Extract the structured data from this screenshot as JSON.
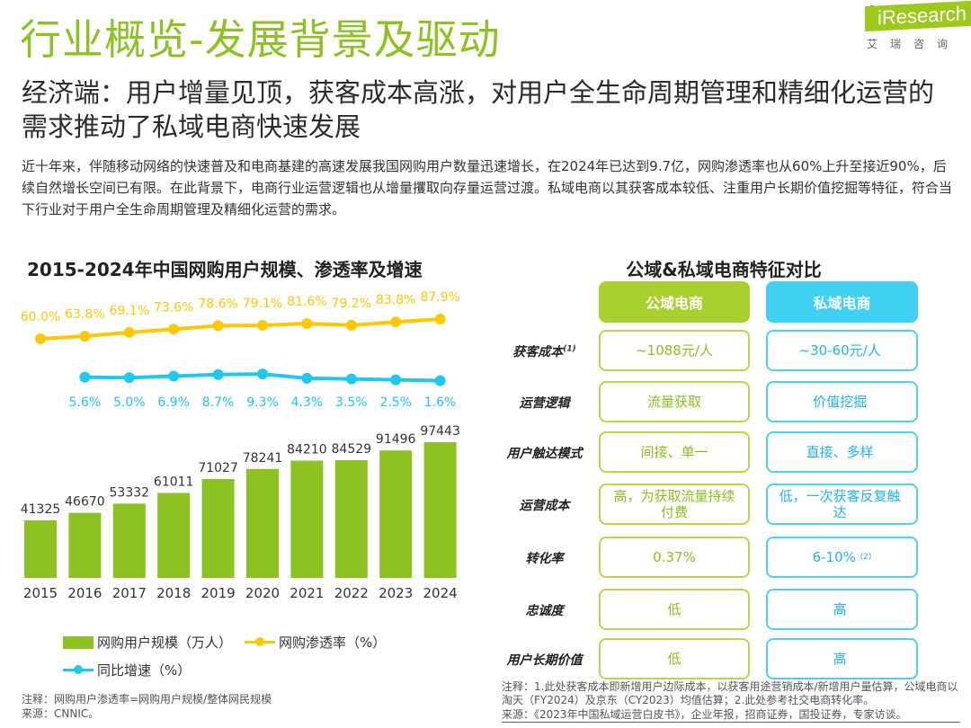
{
  "header": {
    "title": "行业概览-发展背景及驱动",
    "logo_text": "iResearch",
    "logo_cn": "艾瑞咨询"
  },
  "subtitle": "经济端：用户增量见顶，获客成本高涨，对用户全生命周期管理和精细化运营的需求推动了私域电商快速发展",
  "intro": "近十年来，伴随移动网络的快速普及和电商基建的高速发展我国网购用户数量迅速增长，在2024年已达到9.7亿，网购渗透率也从60%上升至接近90%，后续自然增长空间已有限。在此背景下，电商行业运营逻辑也从增量攫取向存量运营过渡。私域电商以其获客成本较低、注重用户长期价值挖掘等特征，符合当下行业对于用户全生命周期管理及精细化运营的需求。",
  "chart_data": {
    "type": "bar",
    "title": "2015-2024年中国网购用户规模、渗透率及增速",
    "categories": [
      "2015",
      "2016",
      "2017",
      "2018",
      "2019",
      "2020",
      "2021",
      "2022",
      "2023",
      "2024"
    ],
    "series": [
      {
        "name": "网购用户规模（万人）",
        "type": "bar",
        "color": "#8cc221",
        "values": [
          41325,
          46670,
          53332,
          61011,
          71027,
          78241,
          84210,
          84529,
          91496,
          97443
        ]
      },
      {
        "name": "网购渗透率（%）",
        "type": "line",
        "color": "#ffc800",
        "values": [
          60.0,
          63.8,
          69.1,
          73.6,
          78.6,
          79.1,
          81.6,
          79.2,
          83.8,
          87.9
        ]
      },
      {
        "name": "同比增速（%）",
        "type": "line",
        "color": "#1ec8f0",
        "values": [
          null,
          5.6,
          5.0,
          6.9,
          8.7,
          9.3,
          4.3,
          3.5,
          2.5,
          1.6
        ]
      }
    ],
    "legend": "bottom"
  },
  "chart_notes": {
    "note": "注释：网购用户渗透率=网购用户规模/整体网民规模",
    "source": "来源：CNNIC。"
  },
  "comparison": {
    "title": "公域&私域电商特征对比",
    "headers": [
      "公域电商",
      "私域电商"
    ],
    "colors": {
      "public": "#a8d12f",
      "private": "#3fd0f2"
    },
    "rows": [
      {
        "label": "获客成本",
        "sup": "(1)",
        "public": "~1088元/人",
        "private": "~30-60元/人",
        "private_sup": ""
      },
      {
        "label": "运营逻辑",
        "sup": "",
        "public": "流量获取",
        "private": "价值挖掘",
        "private_sup": ""
      },
      {
        "label": "用户触达模式",
        "sup": "",
        "public": "间接、单一",
        "private": "直接、多样",
        "private_sup": ""
      },
      {
        "label": "运营成本",
        "sup": "",
        "public": "高，为获取流量持续付费",
        "private": "低，一次获客反复触达",
        "private_sup": ""
      },
      {
        "label": "转化率",
        "sup": "",
        "public": "0.37%",
        "private": "6-10%",
        "private_sup": "(2)"
      },
      {
        "label": "忠诚度",
        "sup": "",
        "public": "低",
        "private": "高",
        "private_sup": ""
      },
      {
        "label": "用户长期价值",
        "sup": "",
        "public": "低",
        "private": "高",
        "private_sup": ""
      }
    ],
    "note": "注释：1.此处获客成本即新增用户边际成本，以获客用途营销成本/新增用户量估算，公域电商以淘天（FY2024）及京东（CY2023）均值估算；2.此处参考社交电商转化率。",
    "source": "来源：《2023年中国私域运营白皮书》，企业年报，招商证券，国投证券，专家访谈。"
  }
}
